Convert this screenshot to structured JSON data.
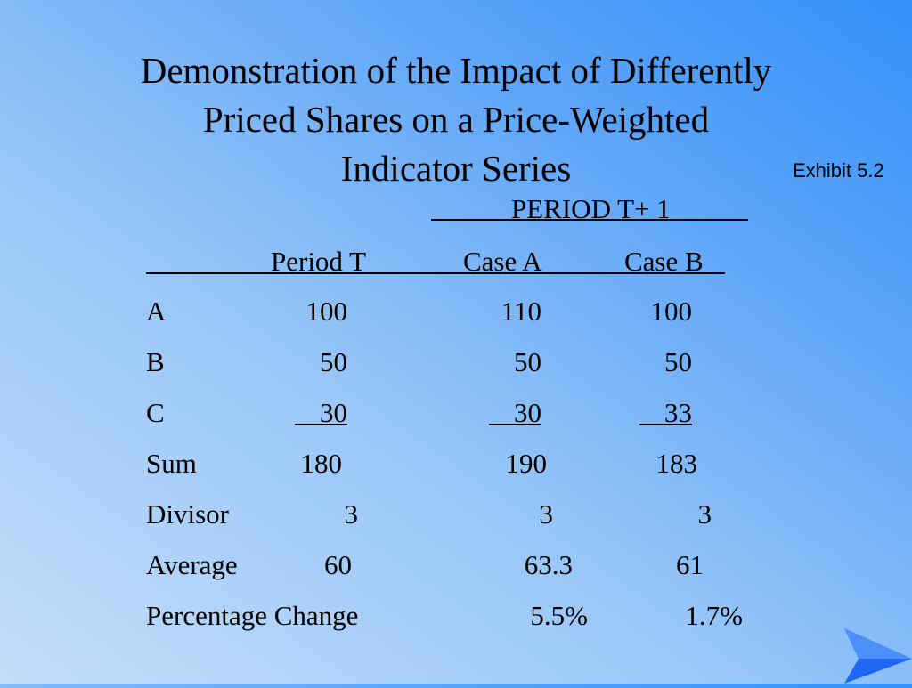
{
  "slide": {
    "title_lines": [
      "Demonstration of the Impact of Differently",
      "Priced Shares on a Price-Weighted",
      "Indicator Series"
    ],
    "exhibit": "Exhibit 5.2"
  },
  "table": {
    "group_header": "PERIOD  T+ 1",
    "columns": [
      "Period T",
      "Case A",
      "Case B"
    ],
    "rows": [
      {
        "label": "A",
        "values": [
          "100",
          "110",
          "100"
        ]
      },
      {
        "label": "B",
        "values": [
          "50",
          "50",
          "50"
        ]
      },
      {
        "label": "C",
        "values": [
          "30",
          "30",
          "33"
        ]
      },
      {
        "label": "Sum",
        "values": [
          "180",
          "190",
          "183"
        ]
      },
      {
        "label": "Divisor",
        "values": [
          "3",
          "3",
          "3"
        ]
      },
      {
        "label": "Average",
        "values": [
          "60",
          "63.3",
          "61"
        ]
      },
      {
        "label": "Percentage Change",
        "values": [
          "",
          "5.5%",
          "1.7%"
        ]
      }
    ]
  },
  "nav": {
    "next_icon": "arrow-right-icon",
    "color": "#1f66f2"
  }
}
